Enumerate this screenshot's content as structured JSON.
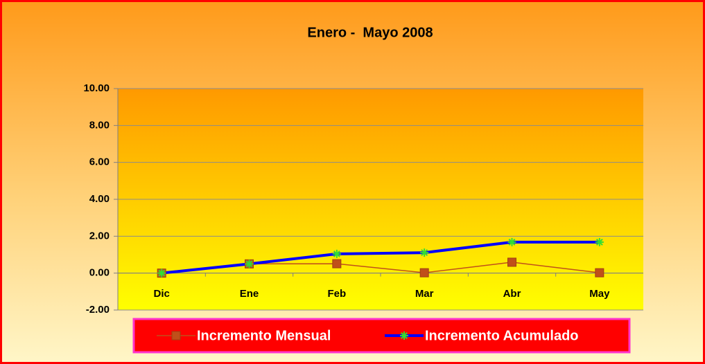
{
  "chart_data": {
    "type": "line",
    "title": "Enero -  Mayo 2008",
    "categories": [
      "Dic",
      "Ene",
      "Feb",
      "Mar",
      "Abr",
      "May"
    ],
    "series": [
      {
        "name": "Incremento Mensual",
        "color": "#c0501a",
        "values": [
          0,
          0.5,
          0.51,
          0.02,
          0.59,
          0.02
        ]
      },
      {
        "name": "Incremento Acumulado",
        "color": "#0000ff",
        "marker_color": "#33dd33",
        "values": [
          0,
          0.5,
          1.04,
          1.11,
          1.68,
          1.68
        ]
      }
    ],
    "ylim": [
      -2,
      10
    ],
    "yticks": [
      {
        "value": -2,
        "label": "-2.00"
      },
      {
        "value": 0,
        "label": "0.00"
      },
      {
        "value": 2,
        "label": "2.00"
      },
      {
        "value": 4,
        "label": "4.00"
      },
      {
        "value": 6,
        "label": "6.00"
      },
      {
        "value": 8,
        "label": "8.00"
      },
      {
        "value": 10,
        "label": "10.00"
      }
    ],
    "grid": true
  }
}
